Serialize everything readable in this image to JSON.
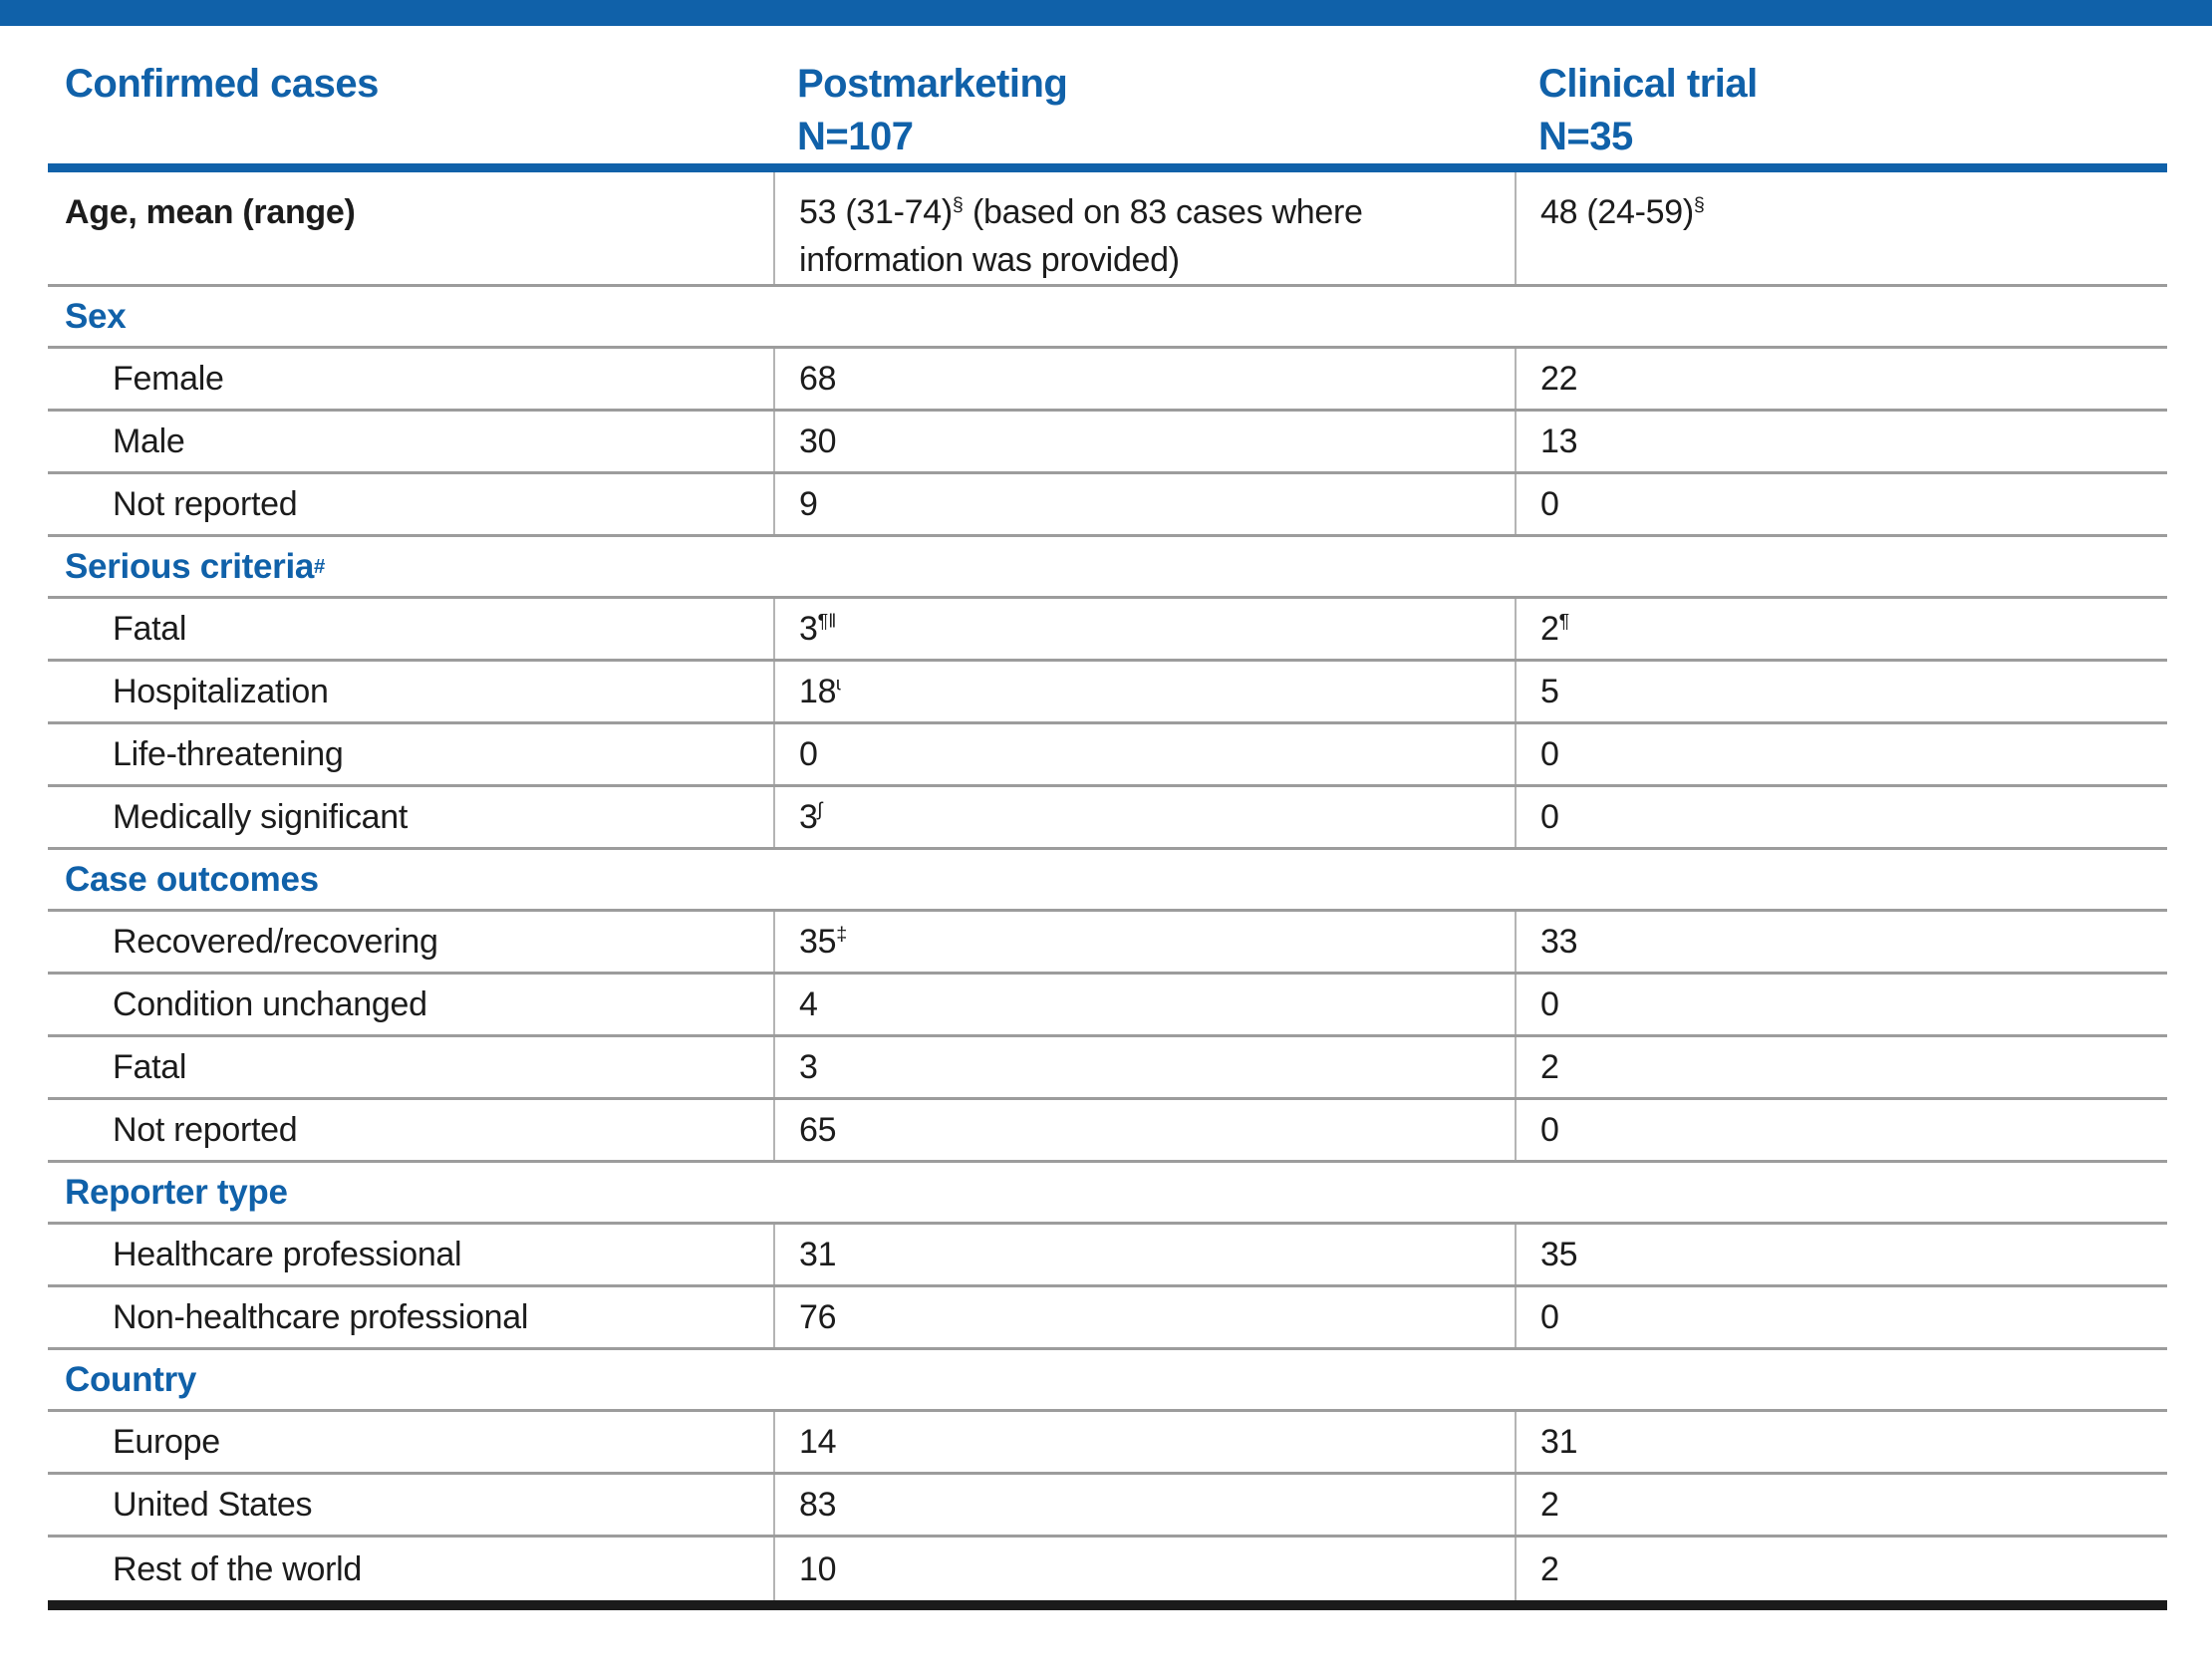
{
  "colors": {
    "accent_blue": "#1061a9",
    "text_black": "#1c1c1c",
    "row_line_gray": "#9c9c9c",
    "column_line_gray": "#b4b4b4",
    "bottom_border_black": "#1b1b1b"
  },
  "header": {
    "col1": "Confirmed cases",
    "col2": {
      "line1": "Postmarketing",
      "line2": "N=107"
    },
    "col3": {
      "line1": "Clinical trial",
      "line2": "N=35"
    }
  },
  "rows": [
    {
      "type": "data",
      "style": "age",
      "label": [
        {
          "t": "Age, mean (range)"
        }
      ],
      "pm": [
        {
          "t": "53 (31-74)"
        },
        {
          "sup": "§"
        },
        {
          "t": " (based on 83 cases where information was provided)"
        }
      ],
      "ct": [
        {
          "t": "48 (24-59)"
        },
        {
          "sup": "§"
        }
      ]
    },
    {
      "type": "section",
      "label": [
        {
          "t": "Sex"
        }
      ]
    },
    {
      "type": "data",
      "label": [
        {
          "t": "Female"
        }
      ],
      "pm": [
        {
          "t": "68"
        }
      ],
      "ct": [
        {
          "t": "22"
        }
      ]
    },
    {
      "type": "data",
      "label": [
        {
          "t": "Male"
        }
      ],
      "pm": [
        {
          "t": "30"
        }
      ],
      "ct": [
        {
          "t": "13"
        }
      ]
    },
    {
      "type": "data",
      "label": [
        {
          "t": "Not reported"
        }
      ],
      "pm": [
        {
          "t": "9"
        }
      ],
      "ct": [
        {
          "t": "0"
        }
      ]
    },
    {
      "type": "section",
      "label": [
        {
          "t": "Serious criteria"
        },
        {
          "sup": "#"
        }
      ]
    },
    {
      "type": "data",
      "label": [
        {
          "t": "Fatal"
        }
      ],
      "pm": [
        {
          "t": "3"
        },
        {
          "sup": "¶‖"
        }
      ],
      "ct": [
        {
          "t": "2"
        },
        {
          "sup": "¶"
        }
      ]
    },
    {
      "type": "data",
      "label": [
        {
          "t": "Hospitalization"
        }
      ],
      "pm": [
        {
          "t": "18"
        },
        {
          "sup": "ɩ"
        }
      ],
      "ct": [
        {
          "t": "5"
        }
      ]
    },
    {
      "type": "data",
      "label": [
        {
          "t": "Life-threatening"
        }
      ],
      "pm": [
        {
          "t": "0"
        }
      ],
      "ct": [
        {
          "t": "0"
        }
      ]
    },
    {
      "type": "data",
      "label": [
        {
          "t": "Medically significant"
        }
      ],
      "pm": [
        {
          "t": "3"
        },
        {
          "sup": "ʃ"
        }
      ],
      "ct": [
        {
          "t": "0"
        }
      ]
    },
    {
      "type": "section",
      "label": [
        {
          "t": "Case outcomes"
        }
      ]
    },
    {
      "type": "data",
      "label": [
        {
          "t": "Recovered/recovering"
        }
      ],
      "pm": [
        {
          "t": "35"
        },
        {
          "sup": "‡"
        }
      ],
      "ct": [
        {
          "t": "33"
        }
      ]
    },
    {
      "type": "data",
      "label": [
        {
          "t": "Condition unchanged"
        }
      ],
      "pm": [
        {
          "t": "4"
        }
      ],
      "ct": [
        {
          "t": "0"
        }
      ]
    },
    {
      "type": "data",
      "label": [
        {
          "t": "Fatal"
        }
      ],
      "pm": [
        {
          "t": "3"
        }
      ],
      "ct": [
        {
          "t": "2"
        }
      ]
    },
    {
      "type": "data",
      "label": [
        {
          "t": "Not reported"
        }
      ],
      "pm": [
        {
          "t": "65"
        }
      ],
      "ct": [
        {
          "t": "0"
        }
      ]
    },
    {
      "type": "section",
      "label": [
        {
          "t": "Reporter type"
        }
      ]
    },
    {
      "type": "data",
      "label": [
        {
          "t": "Healthcare professional"
        }
      ],
      "pm": [
        {
          "t": "31"
        }
      ],
      "ct": [
        {
          "t": "35"
        }
      ]
    },
    {
      "type": "data",
      "label": [
        {
          "t": "Non-healthcare professional"
        }
      ],
      "pm": [
        {
          "t": "76"
        }
      ],
      "ct": [
        {
          "t": "0"
        }
      ]
    },
    {
      "type": "section",
      "label": [
        {
          "t": "Country"
        }
      ]
    },
    {
      "type": "data",
      "label": [
        {
          "t": "Europe"
        }
      ],
      "pm": [
        {
          "t": "14"
        }
      ],
      "ct": [
        {
          "t": "31"
        }
      ]
    },
    {
      "type": "data",
      "label": [
        {
          "t": "United States"
        }
      ],
      "pm": [
        {
          "t": "83"
        }
      ],
      "ct": [
        {
          "t": "2"
        }
      ]
    },
    {
      "type": "data",
      "label": [
        {
          "t": "Rest of the world"
        }
      ],
      "pm": [
        {
          "t": "10"
        }
      ],
      "ct": [
        {
          "t": "2"
        }
      ]
    }
  ]
}
